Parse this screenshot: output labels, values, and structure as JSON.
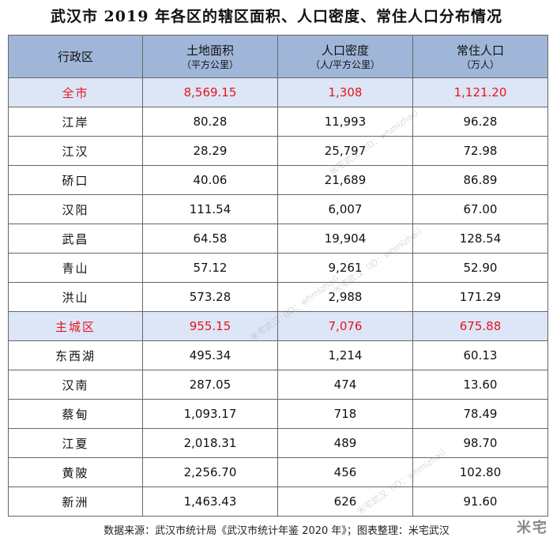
{
  "title": "武汉市 2019 年各区的辖区面积、人口密度、常住人口分布情况",
  "header": {
    "col1": "行政区",
    "col2": {
      "main": "土地面积",
      "unit": "（平方公里）"
    },
    "col3": {
      "main": "人口密度",
      "unit": "（人/平方公里）"
    },
    "col4": {
      "main": "常住人口",
      "unit": "（万人）"
    }
  },
  "rows": [
    {
      "name": "全市",
      "area": "8,569.15",
      "density": "1,308",
      "population": "1,121.20",
      "highlight": true
    },
    {
      "name": "江岸",
      "area": "80.28",
      "density": "11,993",
      "population": "96.28"
    },
    {
      "name": "江汉",
      "area": "28.29",
      "density": "25,797",
      "population": "72.98"
    },
    {
      "name": "硚口",
      "area": "40.06",
      "density": "21,689",
      "population": "86.89"
    },
    {
      "name": "汉阳",
      "area": "111.54",
      "density": "6,007",
      "population": "67.00"
    },
    {
      "name": "武昌",
      "area": "64.58",
      "density": "19,904",
      "population": "128.54"
    },
    {
      "name": "青山",
      "area": "57.12",
      "density": "9,261",
      "population": "52.90"
    },
    {
      "name": "洪山",
      "area": "573.28",
      "density": "2,988",
      "population": "171.29"
    },
    {
      "name": "主城区",
      "area": "955.15",
      "density": "7,076",
      "population": "675.88",
      "highlight": true
    },
    {
      "name": "东西湖",
      "area": "495.34",
      "density": "1,214",
      "population": "60.13"
    },
    {
      "name": "汉南",
      "area": "287.05",
      "density": "474",
      "population": "13.60"
    },
    {
      "name": "蔡甸",
      "area": "1,093.17",
      "density": "718",
      "population": "78.49"
    },
    {
      "name": "江夏",
      "area": "2,018.31",
      "density": "489",
      "population": "98.70"
    },
    {
      "name": "黄陂",
      "area": "2,256.70",
      "density": "456",
      "population": "102.80"
    },
    {
      "name": "新洲",
      "area": "1,463.43",
      "density": "626",
      "population": "91.60"
    }
  ],
  "footer": "数据来源：武汉市统计局《武汉市统计年鉴 2020 年》；图表整理：米宅武汉",
  "logo": "米宅",
  "watermark": "米宅武汉（ID：whmizhai）",
  "colors": {
    "header_bg": "#9fb6d8",
    "highlight_bg": "#dce6f6",
    "highlight_text": "#e8141c"
  }
}
